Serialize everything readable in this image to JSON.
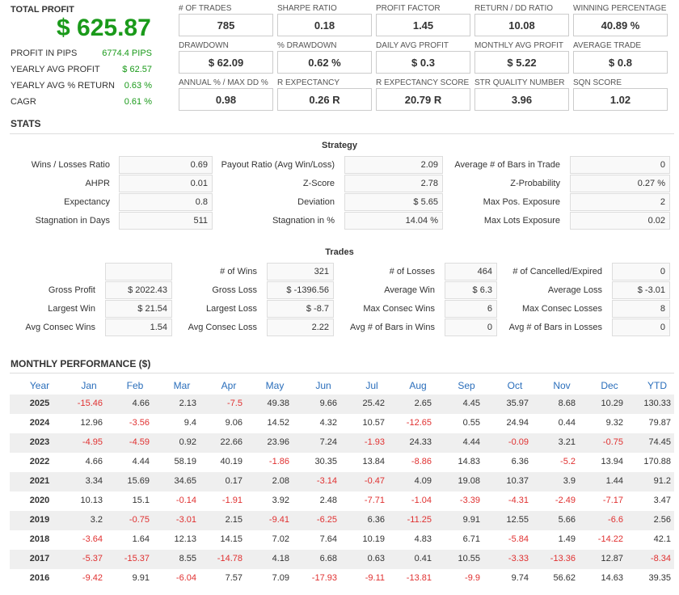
{
  "summary": {
    "title": "TOTAL PROFIT",
    "value": "$ 625.87",
    "rows": [
      [
        "PROFIT IN PIPS",
        "6774.4 PIPS"
      ],
      [
        "YEARLY AVG PROFIT",
        "$ 62.57"
      ],
      [
        "YEARLY AVG % RETURN",
        "0.63 %"
      ],
      [
        "CAGR",
        "0.61 %"
      ]
    ]
  },
  "metrics": [
    [
      {
        "label": "# OF TRADES",
        "value": "785"
      },
      {
        "label": "SHARPE RATIO",
        "value": "0.18"
      },
      {
        "label": "PROFIT FACTOR",
        "value": "1.45"
      },
      {
        "label": "RETURN / DD RATIO",
        "value": "10.08"
      },
      {
        "label": "WINNING PERCENTAGE",
        "value": "40.89 %"
      }
    ],
    [
      {
        "label": "DRAWDOWN",
        "value": "$ 62.09"
      },
      {
        "label": "% DRAWDOWN",
        "value": "0.62 %"
      },
      {
        "label": "DAILY AVG PROFIT",
        "value": "$ 0.3"
      },
      {
        "label": "MONTHLY AVG PROFIT",
        "value": "$ 5.22"
      },
      {
        "label": "AVERAGE TRADE",
        "value": "$ 0.8"
      }
    ],
    [
      {
        "label": "ANNUAL % / MAX DD %",
        "value": "0.98"
      },
      {
        "label": "R EXPECTANCY",
        "value": "0.26 R"
      },
      {
        "label": "R EXPECTANCY SCORE",
        "value": "20.79 R"
      },
      {
        "label": "STR QUALITY NUMBER",
        "value": "3.96"
      },
      {
        "label": "SQN SCORE",
        "value": "1.02"
      }
    ]
  ],
  "stats_title": "STATS",
  "strategy": {
    "title": "Strategy",
    "rows": [
      [
        {
          "label": "Wins / Losses Ratio",
          "value": "0.69"
        },
        {
          "label": "Payout Ratio (Avg Win/Loss)",
          "value": "2.09"
        },
        {
          "label": "Average # of Bars in Trade",
          "value": "0"
        }
      ],
      [
        {
          "label": "AHPR",
          "value": "0.01"
        },
        {
          "label": "Z-Score",
          "value": "2.78"
        },
        {
          "label": "Z-Probability",
          "value": "0.27 %"
        }
      ],
      [
        {
          "label": "Expectancy",
          "value": "0.8"
        },
        {
          "label": "Deviation",
          "value": "$ 5.65"
        },
        {
          "label": "Max Pos. Exposure",
          "value": "2"
        }
      ],
      [
        {
          "label": "Stagnation in Days",
          "value": "511"
        },
        {
          "label": "Stagnation in %",
          "value": "14.04 %"
        },
        {
          "label": "Max Lots Exposure",
          "value": "0.02"
        }
      ]
    ]
  },
  "trades": {
    "title": "Trades",
    "rows": [
      [
        {
          "label": "# of Wins",
          "value": "321"
        },
        {
          "label": "# of Losses",
          "value": "464"
        },
        {
          "label": "# of Cancelled/Expired",
          "value": "0"
        }
      ],
      [
        {
          "label": "Gross Profit",
          "value": "$ 2022.43"
        },
        {
          "label": "Gross Loss",
          "value": "$ -1396.56"
        },
        {
          "label": "Average Win",
          "value": "$ 6.3"
        },
        {
          "label": "Average Loss",
          "value": "$ -3.01"
        }
      ],
      [
        {
          "label": "Largest Win",
          "value": "$ 21.54"
        },
        {
          "label": "Largest Loss",
          "value": "$ -8.7"
        },
        {
          "label": "Max Consec Wins",
          "value": "6"
        },
        {
          "label": "Max Consec Losses",
          "value": "8"
        }
      ],
      [
        {
          "label": "Avg Consec Wins",
          "value": "1.54"
        },
        {
          "label": "Avg Consec Loss",
          "value": "2.22"
        },
        {
          "label": "Avg # of Bars in Wins",
          "value": "0"
        },
        {
          "label": "Avg # of Bars in Losses",
          "value": "0"
        }
      ]
    ]
  },
  "monthly": {
    "title": "MONTHLY PERFORMANCE ($)",
    "columns": [
      "Year",
      "Jan",
      "Feb",
      "Mar",
      "Apr",
      "May",
      "Jun",
      "Jul",
      "Aug",
      "Sep",
      "Oct",
      "Nov",
      "Dec",
      "YTD"
    ],
    "rows": [
      [
        "2025",
        "-15.46",
        "4.66",
        "2.13",
        "-7.5",
        "49.38",
        "9.66",
        "25.42",
        "2.65",
        "4.45",
        "35.97",
        "8.68",
        "10.29",
        "130.33"
      ],
      [
        "2024",
        "12.96",
        "-3.56",
        "9.4",
        "9.06",
        "14.52",
        "4.32",
        "10.57",
        "-12.65",
        "0.55",
        "24.94",
        "0.44",
        "9.32",
        "79.87"
      ],
      [
        "2023",
        "-4.95",
        "-4.59",
        "0.92",
        "22.66",
        "23.96",
        "7.24",
        "-1.93",
        "24.33",
        "4.44",
        "-0.09",
        "3.21",
        "-0.75",
        "74.45"
      ],
      [
        "2022",
        "4.66",
        "4.44",
        "58.19",
        "40.19",
        "-1.86",
        "30.35",
        "13.84",
        "-8.86",
        "14.83",
        "6.36",
        "-5.2",
        "13.94",
        "170.88"
      ],
      [
        "2021",
        "3.34",
        "15.69",
        "34.65",
        "0.17",
        "2.08",
        "-3.14",
        "-0.47",
        "4.09",
        "19.08",
        "10.37",
        "3.9",
        "1.44",
        "91.2"
      ],
      [
        "2020",
        "10.13",
        "15.1",
        "-0.14",
        "-1.91",
        "3.92",
        "2.48",
        "-7.71",
        "-1.04",
        "-3.39",
        "-4.31",
        "-2.49",
        "-7.17",
        "3.47"
      ],
      [
        "2019",
        "3.2",
        "-0.75",
        "-3.01",
        "2.15",
        "-9.41",
        "-6.25",
        "6.36",
        "-11.25",
        "9.91",
        "12.55",
        "5.66",
        "-6.6",
        "2.56"
      ],
      [
        "2018",
        "-3.64",
        "1.64",
        "12.13",
        "14.15",
        "7.02",
        "7.64",
        "10.19",
        "4.83",
        "6.71",
        "-5.84",
        "1.49",
        "-14.22",
        "42.1"
      ],
      [
        "2017",
        "-5.37",
        "-15.37",
        "8.55",
        "-14.78",
        "4.18",
        "6.68",
        "0.63",
        "0.41",
        "10.55",
        "-3.33",
        "-13.36",
        "12.87",
        "-8.34"
      ],
      [
        "2016",
        "-9.42",
        "9.91",
        "-6.04",
        "7.57",
        "7.09",
        "-17.93",
        "-9.11",
        "-13.81",
        "-9.9",
        "9.74",
        "56.62",
        "14.63",
        "39.35"
      ]
    ]
  }
}
